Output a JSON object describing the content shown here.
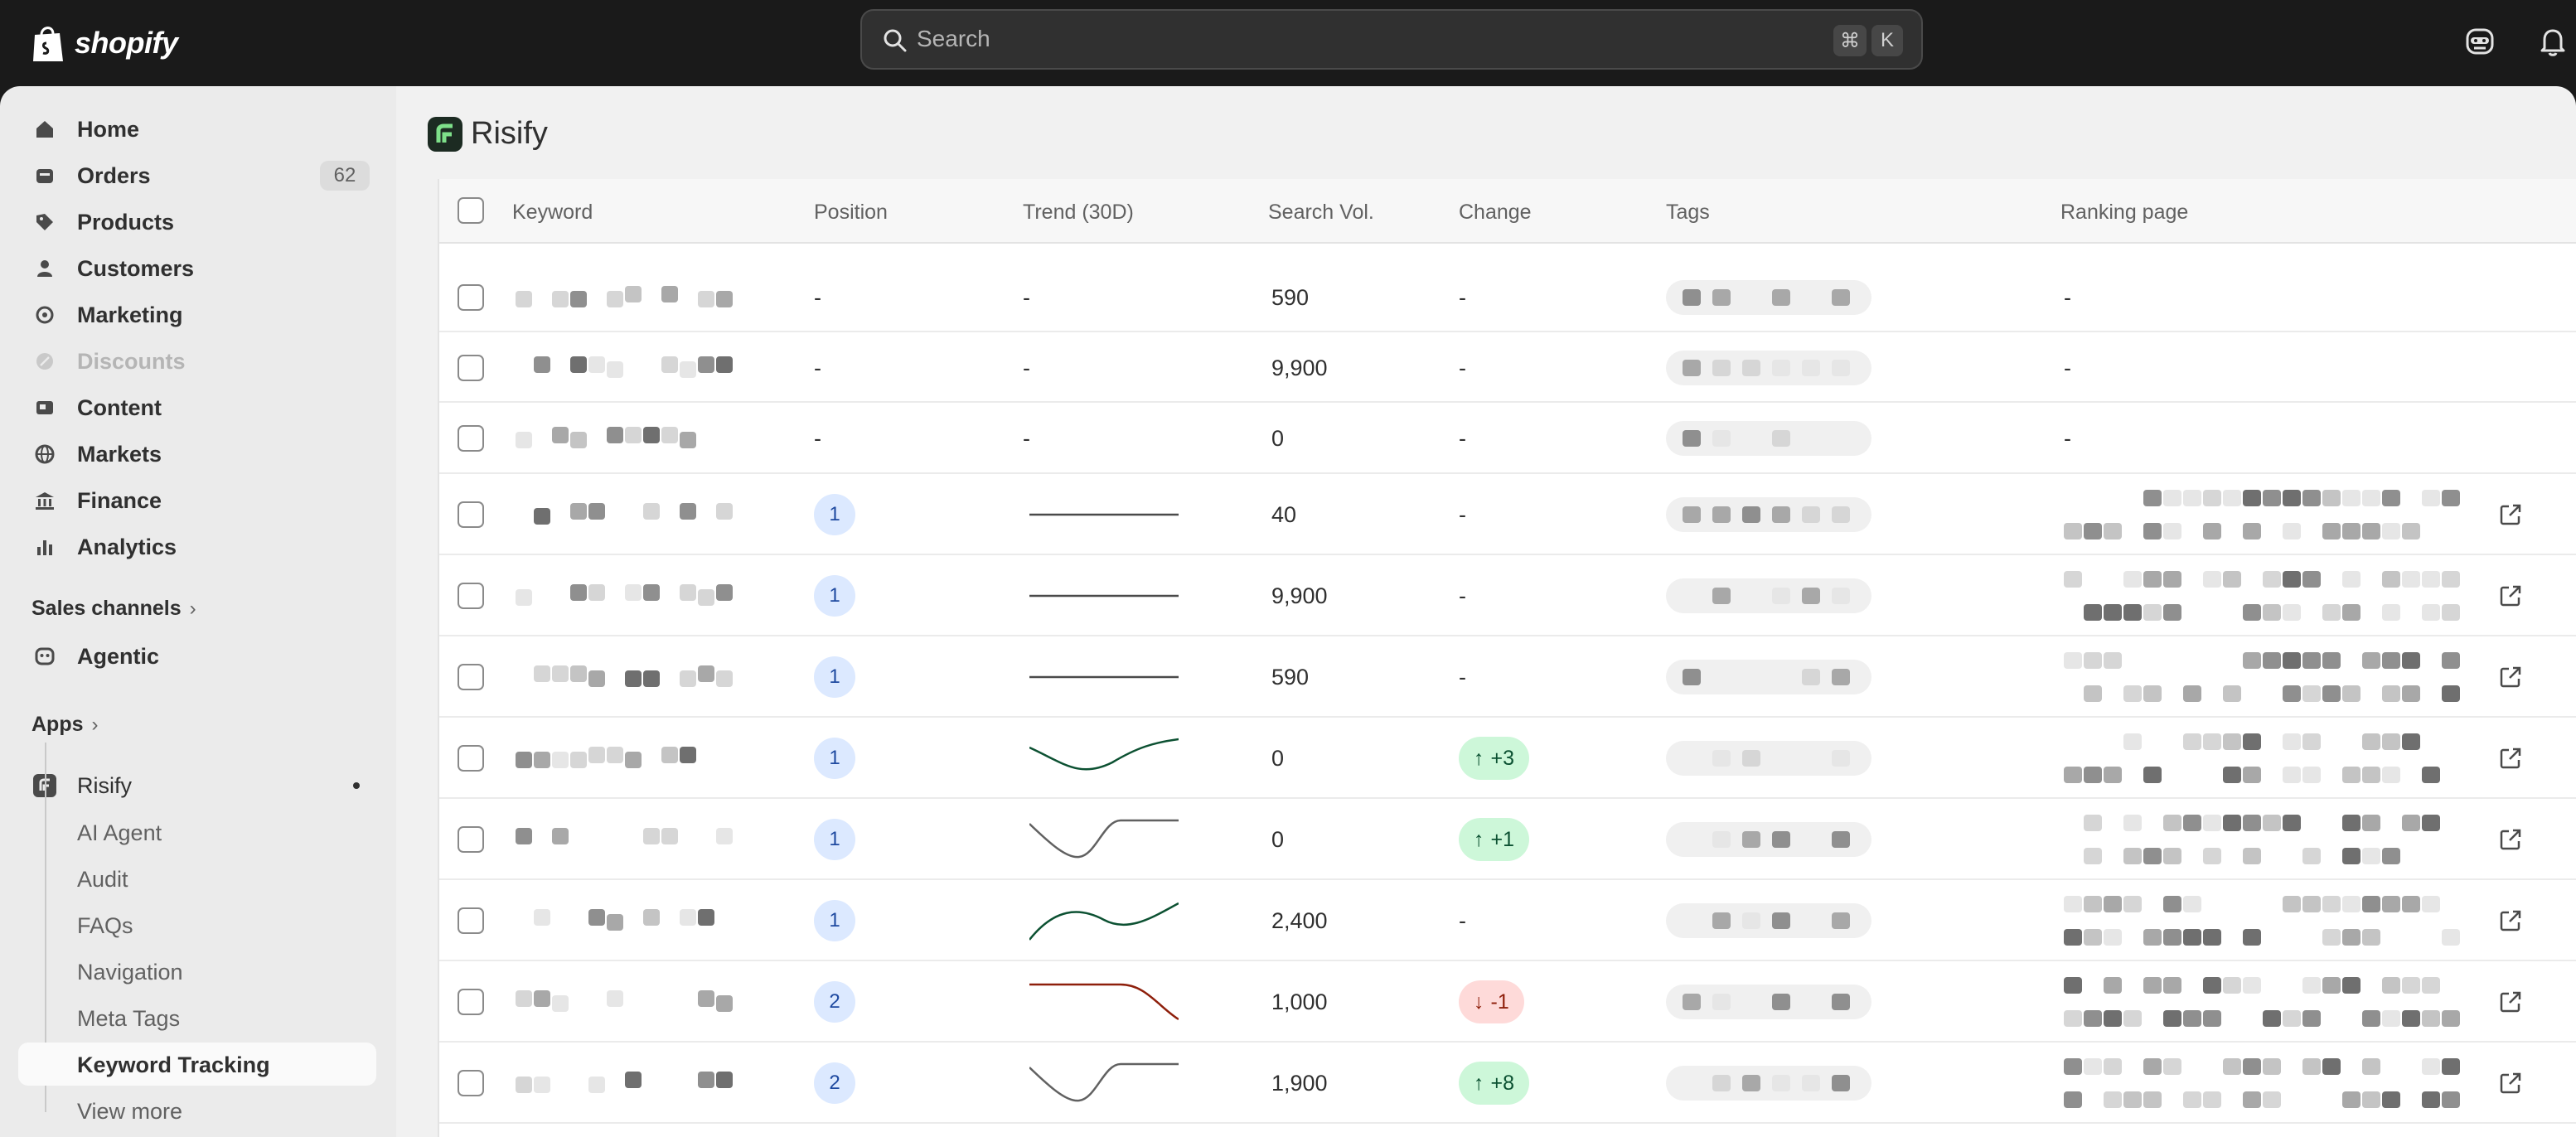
{
  "topbar": {
    "brand": "shopify",
    "search_placeholder": "Search",
    "shortcut_cmd": "⌘",
    "shortcut_key": "K"
  },
  "sidebar": {
    "items": [
      {
        "label": "Home",
        "icon": "home-icon"
      },
      {
        "label": "Orders",
        "icon": "orders-icon",
        "badge": "62"
      },
      {
        "label": "Products",
        "icon": "tag-icon"
      },
      {
        "label": "Customers",
        "icon": "person-icon"
      },
      {
        "label": "Marketing",
        "icon": "target-icon"
      },
      {
        "label": "Discounts",
        "icon": "discount-icon",
        "disabled": true
      },
      {
        "label": "Content",
        "icon": "content-icon"
      },
      {
        "label": "Markets",
        "icon": "globe-icon"
      },
      {
        "label": "Finance",
        "icon": "bank-icon"
      },
      {
        "label": "Analytics",
        "icon": "chart-icon"
      }
    ],
    "sales_channels_label": "Sales channels",
    "agentic_label": "Agentic",
    "apps_label": "Apps",
    "app_name": "Risify",
    "app_sub_items": [
      "AI Agent",
      "Audit",
      "FAQs",
      "Navigation",
      "Meta Tags",
      "Keyword Tracking",
      "View more"
    ],
    "active_sub_item": "Keyword Tracking"
  },
  "main": {
    "app_title": "Risify",
    "columns": [
      "Keyword",
      "Position",
      "Trend (30D)",
      "Search Vol.",
      "Change",
      "Tags",
      "Ranking page"
    ],
    "rows": [
      {
        "position": "-",
        "trend": "-",
        "volume": "590",
        "change": "-",
        "ranking": "-"
      },
      {
        "position": "-",
        "trend": "-",
        "volume": "9,900",
        "change": "-",
        "ranking": "-"
      },
      {
        "position": "-",
        "trend": "-",
        "volume": "0",
        "change": "-",
        "ranking": "-"
      },
      {
        "position": "1",
        "trend_shape": "flat",
        "volume": "40",
        "change": "-"
      },
      {
        "position": "1",
        "trend_shape": "flat",
        "volume": "9,900",
        "change": "-"
      },
      {
        "position": "1",
        "trend_shape": "flat",
        "volume": "590",
        "change": "-"
      },
      {
        "position": "1",
        "trend_shape": "dip-up",
        "trend_color": "#0c5132",
        "volume": "0",
        "change": "+3",
        "change_dir": "up"
      },
      {
        "position": "1",
        "trend_shape": "v-up",
        "trend_color": "#616161",
        "volume": "0",
        "change": "+1",
        "change_dir": "up"
      },
      {
        "position": "1",
        "trend_shape": "wave-up",
        "trend_color": "#0c5132",
        "volume": "2,400",
        "change": "-"
      },
      {
        "position": "2",
        "trend_shape": "drop",
        "trend_color": "#8e1f0b",
        "volume": "1,000",
        "change": "-1",
        "change_dir": "down"
      },
      {
        "position": "2",
        "trend_shape": "v-up",
        "trend_color": "#616161",
        "volume": "1,900",
        "change": "+8",
        "change_dir": "up"
      }
    ]
  }
}
